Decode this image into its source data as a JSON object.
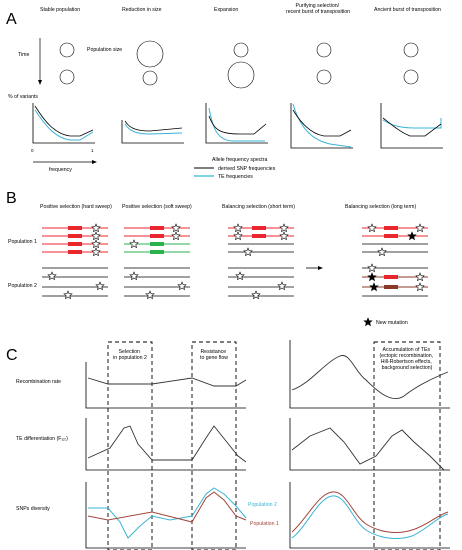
{
  "panelA": {
    "letter": "A",
    "scenarios": [
      "Stable population",
      "Reduction in size",
      "Expansion",
      "Purifying selection/\nrecent burst of transposition",
      "Ancient burst of transposition"
    ],
    "population_size_label": "Population size",
    "time_label": "Time",
    "variants_label": "% of variants",
    "frequency_label": "frequency",
    "tick_0": "0",
    "tick_1": "1",
    "spectra_title": "Allele frequency spectra",
    "legend_snp": "derived SNP frequencies",
    "legend_te": "TE frequencies",
    "colors": {
      "snp": "#000000",
      "te": "#3ab4d6"
    }
  },
  "panelB": {
    "letter": "B",
    "titles": [
      "Positive selection (hard sweep)",
      "Positive selection (soft sweep)",
      "Balancing selection (short term)",
      "Balancing selection (long term)"
    ],
    "population1_label": "Population 1",
    "population2_label": "Population 2",
    "new_mutation_label": "New mutation",
    "colors": {
      "red": "#e8262d",
      "green": "#2bb24c",
      "brown": "#8b3a2a"
    }
  },
  "panelC": {
    "letter": "C",
    "box1": "Selection\nin population 2",
    "box2": "Resistance\nto gene flow",
    "box3": "Accumulation of TEs\n(ectopic recombination,\nHill-Robertson effects,\nbackground selection)",
    "recombination_label": "Recombination rate",
    "te_diff_label": "TE differentiation (F",
    "te_diff_sub": "ST",
    "te_diff_close": ")",
    "snp_label": "SNPs diversity",
    "pop2_label": "Population 2",
    "pop1_label": "Population 1",
    "colors": {
      "pop1": "#a2453a",
      "pop2": "#3ab4d6"
    }
  }
}
